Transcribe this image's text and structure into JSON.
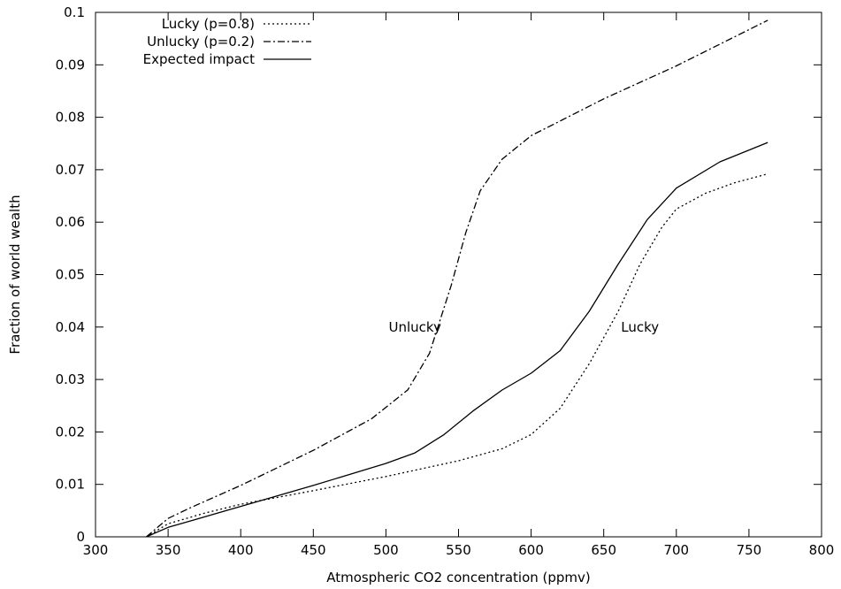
{
  "chart_data": {
    "type": "line",
    "xlabel": "Atmospheric CO2 concentration (ppmv)",
    "ylabel": "Fraction of world wealth",
    "xlim": [
      300,
      800
    ],
    "ylim": [
      0,
      0.1
    ],
    "x_ticks": [
      "300",
      "350",
      "400",
      "450",
      "500",
      "550",
      "600",
      "650",
      "700",
      "750",
      "800"
    ],
    "y_ticks": [
      "0",
      "0.01",
      "0.02",
      "0.03",
      "0.04",
      "0.05",
      "0.06",
      "0.07",
      "0.08",
      "0.09",
      "0.1"
    ],
    "grid": false,
    "legend_position": "top-left",
    "series": [
      {
        "name": "Lucky (p=0.8)",
        "style": "dotted",
        "color": "#000000",
        "points": [
          [
            335,
            0
          ],
          [
            350,
            0.0025
          ],
          [
            375,
            0.0045
          ],
          [
            400,
            0.0062
          ],
          [
            450,
            0.0088
          ],
          [
            500,
            0.0115
          ],
          [
            550,
            0.0145
          ],
          [
            580,
            0.0168
          ],
          [
            600,
            0.0195
          ],
          [
            620,
            0.0245
          ],
          [
            640,
            0.033
          ],
          [
            660,
            0.043
          ],
          [
            675,
            0.052
          ],
          [
            690,
            0.059
          ],
          [
            700,
            0.0625
          ],
          [
            720,
            0.0655
          ],
          [
            740,
            0.0675
          ],
          [
            763,
            0.0692
          ]
        ]
      },
      {
        "name": "Unlucky (p=0.2)",
        "style": "dashdot",
        "color": "#000000",
        "points": [
          [
            335,
            0
          ],
          [
            350,
            0.0035
          ],
          [
            365,
            0.0055
          ],
          [
            400,
            0.0098
          ],
          [
            450,
            0.0165
          ],
          [
            490,
            0.0225
          ],
          [
            515,
            0.028
          ],
          [
            530,
            0.035
          ],
          [
            545,
            0.048
          ],
          [
            555,
            0.058
          ],
          [
            565,
            0.066
          ],
          [
            580,
            0.072
          ],
          [
            600,
            0.0765
          ],
          [
            650,
            0.0835
          ],
          [
            700,
            0.0898
          ],
          [
            763,
            0.0985
          ]
        ]
      },
      {
        "name": "Expected impact",
        "style": "solid",
        "color": "#000000",
        "points": [
          [
            335,
            0
          ],
          [
            350,
            0.0018
          ],
          [
            365,
            0.003
          ],
          [
            400,
            0.0058
          ],
          [
            450,
            0.0098
          ],
          [
            500,
            0.014
          ],
          [
            520,
            0.016
          ],
          [
            540,
            0.0195
          ],
          [
            560,
            0.024
          ],
          [
            580,
            0.028
          ],
          [
            600,
            0.0312
          ],
          [
            620,
            0.0355
          ],
          [
            640,
            0.043
          ],
          [
            660,
            0.052
          ],
          [
            680,
            0.0605
          ],
          [
            700,
            0.0665
          ],
          [
            730,
            0.0715
          ],
          [
            763,
            0.0752
          ]
        ]
      }
    ],
    "annotations": [
      {
        "text": "Unlucky",
        "x": 520,
        "y": 0.04
      },
      {
        "text": "Lucky",
        "x": 675,
        "y": 0.04
      }
    ]
  }
}
